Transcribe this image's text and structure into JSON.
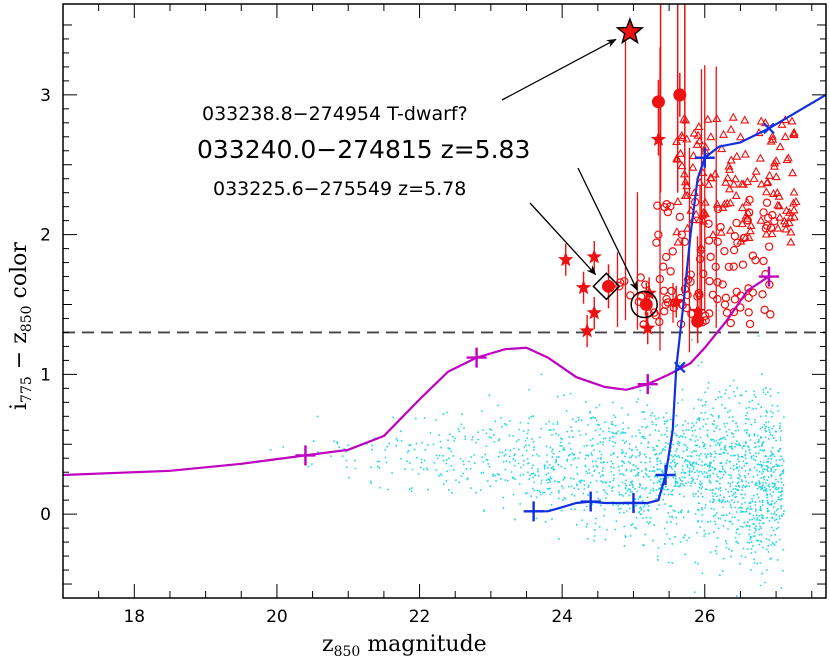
{
  "chart_data": {
    "type": "scatter",
    "title": "",
    "xlabel": {
      "main": "z",
      "sub": "850",
      "rest": " magnitude"
    },
    "ylabel": {
      "p1": "i",
      "s1": "775",
      "p2": " − z",
      "s2": "850",
      "p3": "  color"
    },
    "xlim": [
      17.0,
      27.7
    ],
    "ylim": [
      -0.6,
      3.65
    ],
    "x_ticks": [
      18,
      20,
      22,
      24,
      26
    ],
    "y_ticks": [
      0,
      1,
      2,
      3
    ],
    "color_cut": 1.3,
    "colors": {
      "field": "#22d8e0",
      "candidates": "#ee1111",
      "magenta_track": "#c000c0",
      "blue_track": "#1030e0",
      "cut_line": "#444444"
    },
    "annotations": [
      {
        "text": "033238.8−274954 T-dwarf?",
        "size": "medium",
        "target": [
          24.95,
          3.45
        ]
      },
      {
        "text": "033240.0−274815 z=5.83",
        "size": "large",
        "target": [
          25.15,
          1.5
        ]
      },
      {
        "text": "033225.6−275549 z=5.78",
        "size": "medium",
        "target": [
          24.62,
          1.63
        ]
      }
    ],
    "series": [
      {
        "name": "magenta_track",
        "type": "line",
        "points": [
          [
            17.0,
            0.28
          ],
          [
            18.5,
            0.31
          ],
          [
            19.5,
            0.36
          ],
          [
            20.4,
            0.42
          ],
          [
            21.0,
            0.46
          ],
          [
            21.5,
            0.56
          ],
          [
            22.0,
            0.82
          ],
          [
            22.4,
            1.02
          ],
          [
            22.8,
            1.12
          ],
          [
            23.2,
            1.18
          ],
          [
            23.5,
            1.19
          ],
          [
            23.8,
            1.12
          ],
          [
            24.2,
            0.98
          ],
          [
            24.6,
            0.91
          ],
          [
            24.9,
            0.89
          ],
          [
            25.2,
            0.93
          ],
          [
            25.5,
            1.0
          ],
          [
            25.8,
            1.08
          ],
          [
            26.0,
            1.19
          ],
          [
            26.3,
            1.38
          ],
          [
            26.6,
            1.6
          ],
          [
            26.9,
            1.7
          ]
        ],
        "marker": "plus",
        "markers": [
          [
            20.4,
            0.42
          ],
          [
            22.8,
            1.12
          ],
          [
            25.2,
            0.93
          ],
          [
            26.9,
            1.7
          ]
        ]
      },
      {
        "name": "blue_track",
        "type": "line",
        "points": [
          [
            23.6,
            0.02
          ],
          [
            23.8,
            0.02
          ],
          [
            24.0,
            0.05
          ],
          [
            24.2,
            0.08
          ],
          [
            24.4,
            0.09
          ],
          [
            24.6,
            0.08
          ],
          [
            24.8,
            0.08
          ],
          [
            25.0,
            0.08
          ],
          [
            25.2,
            0.08
          ],
          [
            25.35,
            0.1
          ],
          [
            25.45,
            0.28
          ],
          [
            25.55,
            0.6
          ],
          [
            25.6,
            1.05
          ],
          [
            25.7,
            1.5
          ],
          [
            25.8,
            2.0
          ],
          [
            25.9,
            2.4
          ],
          [
            26.0,
            2.55
          ],
          [
            26.2,
            2.63
          ],
          [
            26.5,
            2.66
          ],
          [
            26.9,
            2.76
          ],
          [
            27.3,
            2.88
          ],
          [
            27.7,
            3.0
          ]
        ],
        "marker": "plus",
        "markers": [
          [
            23.6,
            0.02
          ],
          [
            24.4,
            0.09
          ],
          [
            25.0,
            0.08
          ],
          [
            25.45,
            0.28
          ],
          [
            26.0,
            2.55
          ]
        ],
        "x_markers": [
          [
            25.65,
            1.05
          ],
          [
            26.9,
            2.76
          ]
        ]
      },
      {
        "name": "stars",
        "type": "scatter",
        "marker": "star",
        "points": [
          [
            24.05,
            1.82
          ],
          [
            24.3,
            1.62
          ],
          [
            24.45,
            1.84
          ],
          [
            24.45,
            1.44
          ],
          [
            24.35,
            1.31
          ],
          [
            25.2,
            1.33
          ],
          [
            25.22,
            1.58
          ],
          [
            25.35,
            2.68
          ],
          [
            25.6,
            1.52
          ],
          [
            25.9,
            1.45
          ]
        ]
      },
      {
        "name": "big_dots",
        "type": "scatter",
        "marker": "filled-circle",
        "points": [
          [
            25.65,
            3.0
          ],
          [
            25.35,
            2.95
          ],
          [
            24.65,
            1.63
          ],
          [
            25.18,
            1.5
          ],
          [
            25.9,
            1.38
          ]
        ]
      },
      {
        "name": "tdwarf",
        "type": "scatter",
        "marker": "big-star",
        "points": [
          [
            24.95,
            3.45
          ]
        ]
      }
    ]
  }
}
